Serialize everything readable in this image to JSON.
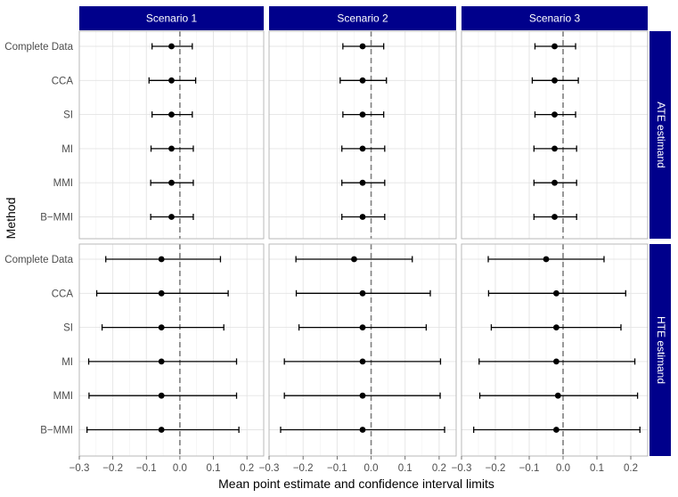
{
  "chart_data": {
    "type": "forest",
    "xlabel": "Mean point estimate and confidence interval limits",
    "ylabel": "Method",
    "xlim": [
      -0.3,
      0.25
    ],
    "xticks": [
      -0.3,
      -0.2,
      -0.1,
      0.0,
      0.1,
      0.2
    ],
    "xtick_labels": [
      "−0.3",
      "−0.2",
      "−0.1",
      "0.0",
      "0.1",
      "0.2"
    ],
    "reference_line": 0,
    "methods": [
      "Complete Data",
      "CCA",
      "SI",
      "MI",
      "MMI",
      "B−MMI"
    ],
    "columns": [
      "Scenario 1",
      "Scenario 2",
      "Scenario 3"
    ],
    "rows": [
      "ATE estimand",
      "HTE estimand"
    ],
    "strip_color": "#00008B",
    "panels": [
      {
        "row": "ATE estimand",
        "column": "Scenario 1",
        "estimates": [
          {
            "method": "Complete Data",
            "mean": -0.025,
            "lower": -0.083,
            "upper": 0.037
          },
          {
            "method": "CCA",
            "mean": -0.025,
            "lower": -0.092,
            "upper": 0.047
          },
          {
            "method": "SI",
            "mean": -0.025,
            "lower": -0.083,
            "upper": 0.037
          },
          {
            "method": "MI",
            "mean": -0.025,
            "lower": -0.086,
            "upper": 0.04
          },
          {
            "method": "MMI",
            "mean": -0.025,
            "lower": -0.087,
            "upper": 0.04
          },
          {
            "method": "B−MMI",
            "mean": -0.025,
            "lower": -0.087,
            "upper": 0.04
          }
        ]
      },
      {
        "row": "ATE estimand",
        "column": "Scenario 2",
        "estimates": [
          {
            "method": "Complete Data",
            "mean": -0.025,
            "lower": -0.083,
            "upper": 0.037
          },
          {
            "method": "CCA",
            "mean": -0.025,
            "lower": -0.091,
            "upper": 0.045
          },
          {
            "method": "SI",
            "mean": -0.025,
            "lower": -0.083,
            "upper": 0.037
          },
          {
            "method": "MI",
            "mean": -0.025,
            "lower": -0.086,
            "upper": 0.04
          },
          {
            "method": "MMI",
            "mean": -0.025,
            "lower": -0.086,
            "upper": 0.04
          },
          {
            "method": "B−MMI",
            "mean": -0.025,
            "lower": -0.086,
            "upper": 0.04
          }
        ]
      },
      {
        "row": "ATE estimand",
        "column": "Scenario 3",
        "estimates": [
          {
            "method": "Complete Data",
            "mean": -0.025,
            "lower": -0.083,
            "upper": 0.037
          },
          {
            "method": "CCA",
            "mean": -0.025,
            "lower": -0.091,
            "upper": 0.045
          },
          {
            "method": "SI",
            "mean": -0.025,
            "lower": -0.083,
            "upper": 0.037
          },
          {
            "method": "MI",
            "mean": -0.025,
            "lower": -0.086,
            "upper": 0.04
          },
          {
            "method": "MMI",
            "mean": -0.025,
            "lower": -0.086,
            "upper": 0.04
          },
          {
            "method": "B−MMI",
            "mean": -0.025,
            "lower": -0.086,
            "upper": 0.04
          }
        ]
      },
      {
        "row": "HTE estimand",
        "column": "Scenario 1",
        "estimates": [
          {
            "method": "Complete Data",
            "mean": -0.055,
            "lower": -0.221,
            "upper": 0.121
          },
          {
            "method": "CCA",
            "mean": -0.055,
            "lower": -0.248,
            "upper": 0.144
          },
          {
            "method": "SI",
            "mean": -0.055,
            "lower": -0.232,
            "upper": 0.131
          },
          {
            "method": "MI",
            "mean": -0.055,
            "lower": -0.272,
            "upper": 0.169
          },
          {
            "method": "MMI",
            "mean": -0.055,
            "lower": -0.271,
            "upper": 0.169
          },
          {
            "method": "B−MMI",
            "mean": -0.055,
            "lower": -0.277,
            "upper": 0.176
          }
        ]
      },
      {
        "row": "HTE estimand",
        "column": "Scenario 2",
        "estimates": [
          {
            "method": "Complete Data",
            "mean": -0.05,
            "lower": -0.221,
            "upper": 0.121
          },
          {
            "method": "CCA",
            "mean": -0.025,
            "lower": -0.22,
            "upper": 0.174
          },
          {
            "method": "SI",
            "mean": -0.025,
            "lower": -0.212,
            "upper": 0.162
          },
          {
            "method": "MI",
            "mean": -0.025,
            "lower": -0.255,
            "upper": 0.204
          },
          {
            "method": "MMI",
            "mean": -0.025,
            "lower": -0.255,
            "upper": 0.203
          },
          {
            "method": "B−MMI",
            "mean": -0.025,
            "lower": -0.266,
            "upper": 0.216
          }
        ]
      },
      {
        "row": "HTE estimand",
        "column": "Scenario 3",
        "estimates": [
          {
            "method": "Complete Data",
            "mean": -0.05,
            "lower": -0.221,
            "upper": 0.121
          },
          {
            "method": "CCA",
            "mean": -0.02,
            "lower": -0.22,
            "upper": 0.185
          },
          {
            "method": "SI",
            "mean": -0.02,
            "lower": -0.212,
            "upper": 0.171
          },
          {
            "method": "MI",
            "mean": -0.02,
            "lower": -0.248,
            "upper": 0.212
          },
          {
            "method": "MMI",
            "mean": -0.015,
            "lower": -0.246,
            "upper": 0.22
          },
          {
            "method": "B−MMI",
            "mean": -0.02,
            "lower": -0.264,
            "upper": 0.227
          }
        ]
      }
    ]
  }
}
